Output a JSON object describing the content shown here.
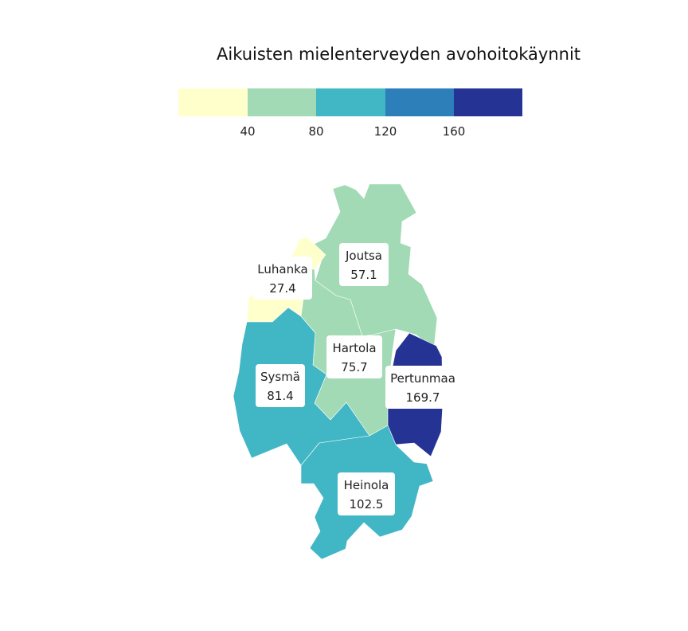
{
  "title": "Aikuisten mielenterveyden avohoitokäynnit",
  "legend": {
    "colors": [
      "#ffffcc",
      "#a1dab4",
      "#41b6c4",
      "#2c7fb8",
      "#253494"
    ],
    "breaks": [
      "40",
      "80",
      "120",
      "160"
    ]
  },
  "regions": [
    {
      "name": "Joutsa",
      "value": "57.1"
    },
    {
      "name": "Luhanka",
      "value": "27.4"
    },
    {
      "name": "Hartola",
      "value": "75.7"
    },
    {
      "name": "Sysmä",
      "value": "81.4"
    },
    {
      "name": "Pertunmaa",
      "value": "169.7"
    },
    {
      "name": "Heinola",
      "value": "102.5"
    }
  ]
}
